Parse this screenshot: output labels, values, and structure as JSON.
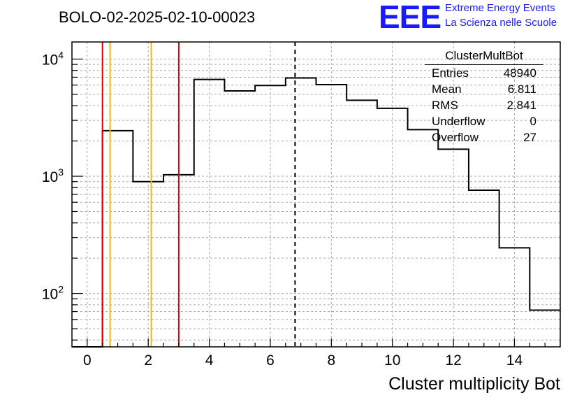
{
  "title": "BOLO-02-2025-02-10-00023",
  "logo": {
    "letters": "EEE",
    "line1": "Extreme Energy Events",
    "line2": "La Scienza nelle Scuole",
    "color": "#1a1aff"
  },
  "stats_box": {
    "name": "ClusterMultBot",
    "rows": [
      {
        "label": "Entries",
        "value": "48940"
      },
      {
        "label": "Mean",
        "value": "6.811"
      },
      {
        "label": "RMS",
        "value": "2.841"
      },
      {
        "label": "Underflow",
        "value": "0"
      },
      {
        "label": "Overflow",
        "value": "27"
      }
    ]
  },
  "chart_data": {
    "type": "histogram",
    "xlabel": "Cluster multiplicity Bot",
    "ylabel": "",
    "xlim": [
      -0.5,
      15.5
    ],
    "ylim": [
      35,
      14000
    ],
    "y_scale": "log",
    "grid": true,
    "x_ticks": [
      0,
      2,
      4,
      6,
      8,
      10,
      12,
      14
    ],
    "y_ticks": [
      {
        "value": 100,
        "label": "10",
        "exp": "2"
      },
      {
        "value": 1000,
        "label": "10",
        "exp": "3"
      },
      {
        "value": 10000,
        "label": "10",
        "exp": "4"
      }
    ],
    "bin_edges": [
      -0.5,
      0.5,
      1.5,
      2.5,
      3.5,
      4.5,
      5.5,
      6.5,
      7.5,
      8.5,
      9.5,
      10.5,
      11.5,
      12.5,
      13.5,
      14.5,
      15.5
    ],
    "counts": [
      0,
      2450,
      900,
      1030,
      6700,
      5350,
      5950,
      6900,
      6050,
      4450,
      3800,
      2500,
      1700,
      760,
      245,
      72
    ],
    "vertical_lines": [
      {
        "x": 0.5,
        "color": "#e60000",
        "style": "solid"
      },
      {
        "x": 0.75,
        "color": "#f5b800",
        "style": "solid"
      },
      {
        "x": 2.1,
        "color": "#f5b800",
        "style": "solid"
      },
      {
        "x": 3.0,
        "color": "#e60000",
        "style": "solid"
      },
      {
        "x": 6.811,
        "color": "#000000",
        "style": "dashed"
      }
    ]
  }
}
